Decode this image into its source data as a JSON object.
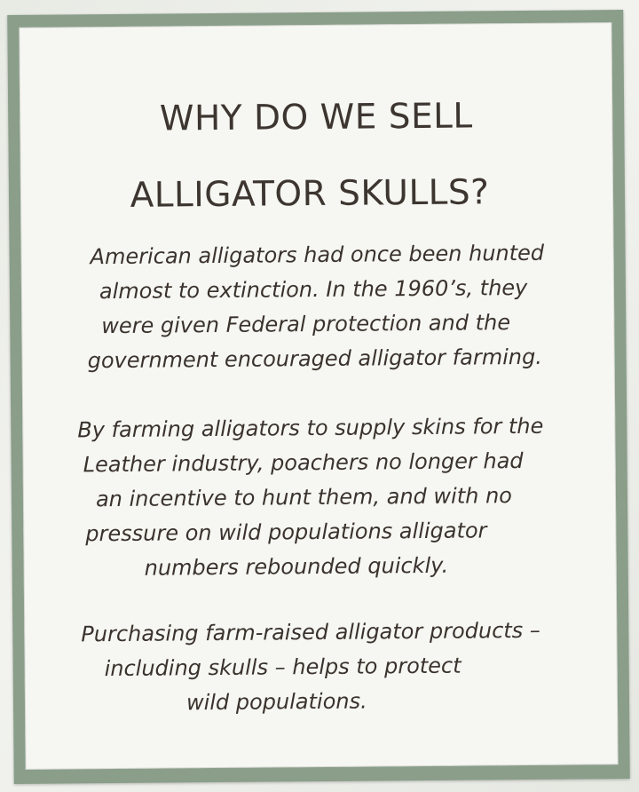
{
  "sign": {
    "title_lines": [
      "WHY DO WE SELL",
      "ALLIGATOR SKULLS?"
    ],
    "paragraph_1": [
      "American alligators had once been hunted",
      "almost to extinction. In the 1960’s, they",
      "were given Federal protection and the",
      "government encouraged alligator farming."
    ],
    "paragraph_2": [
      "By farming alligators to supply skins for the",
      "Leather industry, poachers no longer had",
      "an incentive to hunt them, and with no",
      "pressure on wild populations alligator",
      "numbers rebounded quickly."
    ],
    "paragraph_3": [
      "Purchasing farm-raised alligator products –",
      "including skulls – helps to protect",
      "wild populations."
    ]
  },
  "colors": {
    "frame": "#8a9e8a",
    "paper": "#f6f7f2",
    "text": "#3a322d"
  }
}
